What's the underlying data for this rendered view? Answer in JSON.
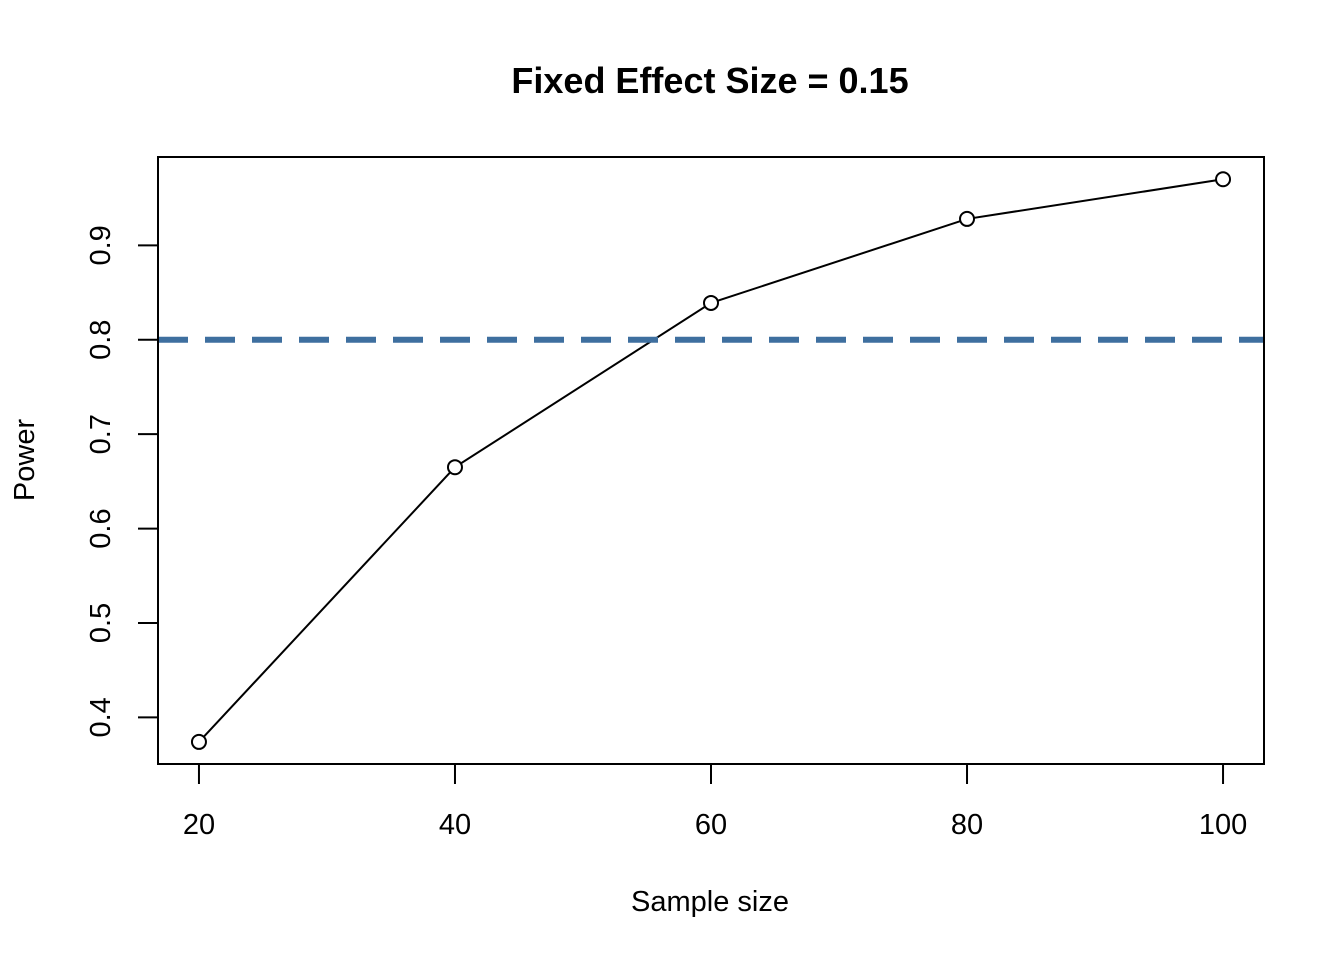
{
  "chart_data": {
    "type": "line",
    "title": "Fixed Effect Size = 0.15",
    "xlabel": "Sample size",
    "ylabel": "Power",
    "x": [
      20,
      40,
      60,
      80,
      100
    ],
    "series": [
      {
        "values": [
          0.374,
          0.665,
          0.839,
          0.928,
          0.97
        ],
        "color": "#000000",
        "marker": "open-circle"
      }
    ],
    "xticks": [
      20,
      40,
      60,
      80,
      100
    ],
    "xtick_labels": [
      "20",
      "40",
      "60",
      "80",
      "100"
    ],
    "yticks": [
      0.4,
      0.5,
      0.6,
      0.7,
      0.8,
      0.9
    ],
    "ytick_labels": [
      "0.4",
      "0.5",
      "0.6",
      "0.7",
      "0.8",
      "0.9"
    ],
    "xlim": [
      16.8,
      103.2
    ],
    "ylim": [
      0.3506,
      0.9936
    ],
    "reference_line": {
      "axis": "y",
      "value": 0.8,
      "style": "dashed",
      "color": "#3e6f9f"
    },
    "grid": false,
    "legend": "none"
  }
}
